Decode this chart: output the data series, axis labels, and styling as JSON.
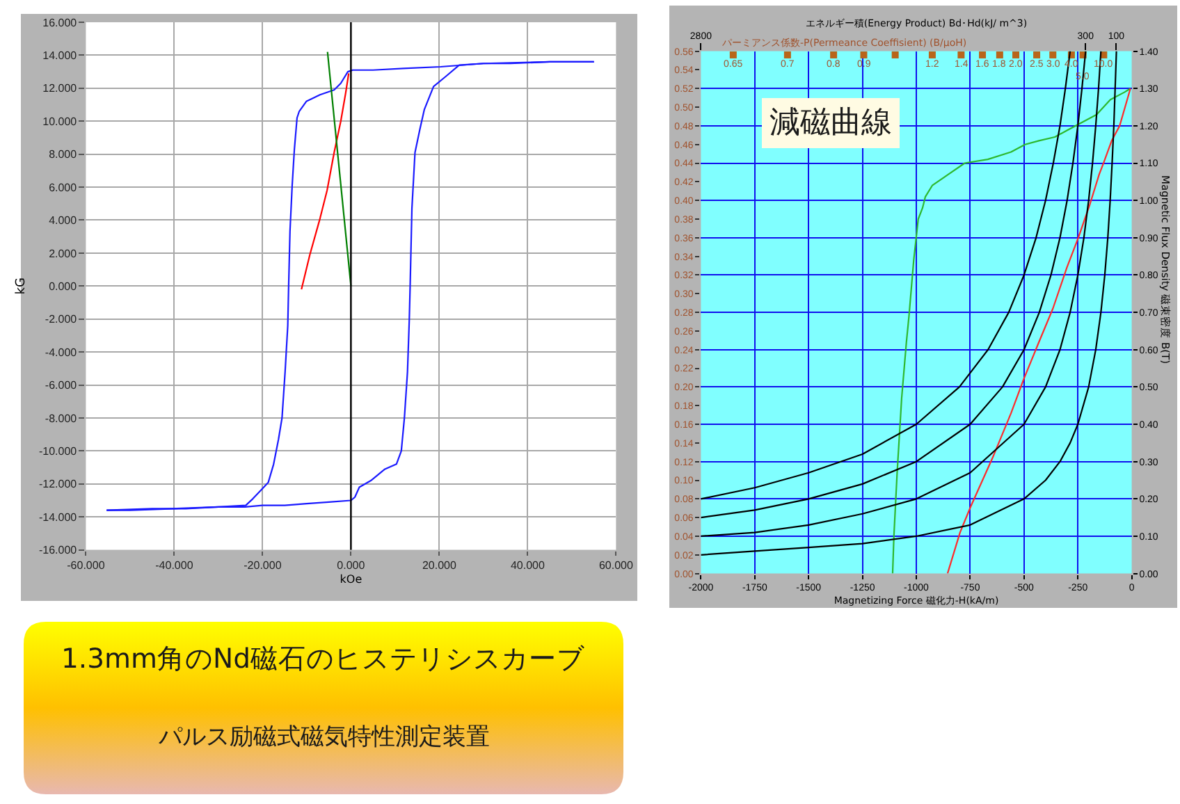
{
  "chart_data": [
    {
      "type": "line",
      "xlabel": "kOe",
      "ylabel": "kG",
      "xlim": [
        -60,
        60
      ],
      "xticks": [
        {
          "value": -60,
          "label": "-60.000"
        },
        {
          "value": -40,
          "label": "-40.000"
        },
        {
          "value": -20,
          "label": "-20.000"
        },
        {
          "value": 0,
          "label": "0.000"
        },
        {
          "value": 20,
          "label": "20.000"
        },
        {
          "value": 40,
          "label": "40.000"
        },
        {
          "value": 60,
          "label": "60.000"
        }
      ],
      "ylim": [
        -16,
        16
      ],
      "yticks": [
        {
          "value": -16,
          "label": "-16.000"
        },
        {
          "value": -14,
          "label": "-14.000"
        },
        {
          "value": -12,
          "label": "-12.000"
        },
        {
          "value": -10,
          "label": "-10.000"
        },
        {
          "value": -8,
          "label": "-8.000"
        },
        {
          "value": -6,
          "label": "-6.000"
        },
        {
          "value": -4,
          "label": "-4.000"
        },
        {
          "value": -2,
          "label": "-2.000"
        },
        {
          "value": 0,
          "label": "0.000"
        },
        {
          "value": 2,
          "label": "2.000"
        },
        {
          "value": 4,
          "label": "4.000"
        },
        {
          "value": 6,
          "label": "6.000"
        },
        {
          "value": 8,
          "label": "8.000"
        },
        {
          "value": 10,
          "label": "10.000"
        },
        {
          "value": 12,
          "label": "12.000"
        },
        {
          "value": 14,
          "label": "14.000"
        },
        {
          "value": 16,
          "label": "16.000"
        }
      ],
      "grid": true,
      "ref_lines": [
        {
          "axis": "x",
          "value": 0,
          "color": "#000000"
        }
      ],
      "series": [
        {
          "color": "#1a1aff",
          "x": [
            -55.3,
            -50,
            -40,
            -30,
            -24,
            -20,
            -15,
            -10,
            -5,
            0,
            0.9,
            1.9,
            4.5,
            7.7,
            10.3,
            11.4,
            12.1,
            12.8,
            13.2,
            13.4,
            13.8,
            14.5,
            15.6,
            16.6,
            18.7,
            21.4,
            24.5,
            30,
            36.1,
            45,
            55
          ],
          "values": [
            -13.6,
            -13.6,
            -13.5,
            -13.4,
            -13.4,
            -13.3,
            -13.3,
            -13.2,
            -13.1,
            -13.0,
            -12.8,
            -12.2,
            -11.8,
            -11.1,
            -10.8,
            -10.0,
            -8.0,
            -5.2,
            -2.1,
            0,
            4.7,
            8.1,
            9.5,
            10.7,
            12.1,
            12.7,
            13.4,
            13.5,
            13.5,
            13.6,
            13.6
          ]
        },
        {
          "color": "#1a1aff",
          "x": [
            55,
            45,
            30,
            20.3,
            11.9,
            5,
            0.4,
            -0.7,
            -2.3,
            -3.8,
            -7,
            -10.1,
            -11.7,
            -12.2,
            -12.8,
            -13.3,
            -13.8,
            -14.1,
            -14.3,
            -14.9,
            -15.6,
            -16.4,
            -17.5,
            -18.7,
            -20.1,
            -22.2,
            -23.8,
            -30,
            -37.4,
            -45,
            -55.3
          ],
          "values": [
            13.6,
            13.6,
            13.5,
            13.3,
            13.2,
            13.1,
            13.1,
            13.0,
            12.3,
            11.9,
            11.6,
            11.2,
            10.6,
            10.2,
            8.3,
            6.1,
            3.3,
            0,
            -2.4,
            -5.2,
            -8.0,
            -9.3,
            -10.8,
            -11.9,
            -12.3,
            -12.9,
            -13.3,
            -13.4,
            -13.5,
            -13.5,
            -13.6
          ]
        },
        {
          "color": "#ff0000",
          "x": [
            -11.2,
            -9.3,
            -7.0,
            -5.4,
            -3.8,
            -2.3,
            -1.2,
            -0.5
          ],
          "values": [
            -0.2,
            1.9,
            4.1,
            5.8,
            8.1,
            10.0,
            11.7,
            12.9
          ]
        },
        {
          "color": "#008000",
          "x": [
            -5.3,
            0
          ],
          "values": [
            14.2,
            0
          ]
        }
      ]
    },
    {
      "type": "line",
      "title": "減磁曲線",
      "xlabel": "Magnetizing Force 磁化力-H(kA/m)",
      "y2label": "Magnetic Flux Density 磁束密度 B(T)",
      "x2label": "エネルギー積(Energy Product) Bd･Hd(kJ/ m^3)",
      "xlim": [
        -2000,
        0
      ],
      "xticks": [
        -2000,
        -1750,
        -1500,
        -1250,
        -1000,
        -750,
        -500,
        -250,
        0
      ],
      "ylim": [
        0,
        0.56
      ],
      "yticks": [
        {
          "value": 0,
          "label": "0.00"
        },
        {
          "value": 0.02,
          "label": "0.02"
        },
        {
          "value": 0.04,
          "label": "0.04"
        },
        {
          "value": 0.06,
          "label": "0.06"
        },
        {
          "value": 0.08,
          "label": "0.08"
        },
        {
          "value": 0.1,
          "label": "0.10"
        },
        {
          "value": 0.12,
          "label": "0.12"
        },
        {
          "value": 0.14,
          "label": "0.14"
        },
        {
          "value": 0.16,
          "label": "0.16"
        },
        {
          "value": 0.18,
          "label": "0.18"
        },
        {
          "value": 0.2,
          "label": "0.20"
        },
        {
          "value": 0.22,
          "label": "0.22"
        },
        {
          "value": 0.24,
          "label": "0.24"
        },
        {
          "value": 0.26,
          "label": "0.26"
        },
        {
          "value": 0.28,
          "label": "0.28"
        },
        {
          "value": 0.3,
          "label": "0.30"
        },
        {
          "value": 0.32,
          "label": "0.32"
        },
        {
          "value": 0.34,
          "label": "0.34"
        },
        {
          "value": 0.36,
          "label": "0.36"
        },
        {
          "value": 0.38,
          "label": "0.38"
        },
        {
          "value": 0.4,
          "label": "0.40"
        },
        {
          "value": 0.42,
          "label": "0.42"
        },
        {
          "value": 0.44,
          "label": "0.44"
        },
        {
          "value": 0.46,
          "label": "0.46"
        },
        {
          "value": 0.48,
          "label": "0.48"
        },
        {
          "value": 0.5,
          "label": "0.50"
        },
        {
          "value": 0.52,
          "label": "0.52"
        },
        {
          "value": 0.54,
          "label": "0.54"
        },
        {
          "value": 0.56,
          "label": "0.56"
        }
      ],
      "y2lim": [
        0,
        1.4
      ],
      "y2ticks": [
        {
          "value": 0,
          "label": "0.00"
        },
        {
          "value": 0.1,
          "label": "0.10"
        },
        {
          "value": 0.2,
          "label": "0.20"
        },
        {
          "value": 0.3,
          "label": "0.30"
        },
        {
          "value": 0.4,
          "label": "0.40"
        },
        {
          "value": 0.5,
          "label": "0.50"
        },
        {
          "value": 0.6,
          "label": "0.60"
        },
        {
          "value": 0.7,
          "label": "0.70"
        },
        {
          "value": 0.8,
          "label": "0.80"
        },
        {
          "value": 0.9,
          "label": "0.90"
        },
        {
          "value": 1.0,
          "label": "1.00"
        },
        {
          "value": 1.1,
          "label": "1.10"
        },
        {
          "value": 1.2,
          "label": "1.20"
        },
        {
          "value": 1.3,
          "label": "1.30"
        },
        {
          "value": 1.4,
          "label": "1.40"
        }
      ],
      "x2lim": [
        2800,
        0
      ],
      "x2ticks": [
        2800,
        300,
        100
      ],
      "grid": true,
      "annotations": [
        "パーミアンス係数-P(Permeance Coeffisient) (B/μoH)",
        {
          "text": "0.65",
          "x": -1850,
          "y": 0.556
        },
        {
          "text": "0.7",
          "x": -1598,
          "y": 0.556
        },
        {
          "text": "0.8",
          "x": -1384,
          "y": 0.556
        },
        {
          "text": "0.9",
          "x": -1244,
          "y": 0.556
        },
        {
          "text": "1.2",
          "x": -926,
          "y": 0.556
        },
        {
          "text": "1.4",
          "x": -792,
          "y": 0.556
        },
        {
          "text": "1.6",
          "x": -693,
          "y": 0.556
        },
        {
          "text": "1.8",
          "x": -613,
          "y": 0.556
        },
        {
          "text": "2.0",
          "x": -538,
          "y": 0.556
        },
        {
          "text": "2.5",
          "x": -441,
          "y": 0.556
        },
        {
          "text": "3.0",
          "x": -366,
          "y": 0.556
        },
        {
          "text": "4.0",
          "x": -280,
          "y": 0.556
        },
        {
          "text": "5.0",
          "x": -226,
          "y": 0.556
        },
        {
          "text": "10.0",
          "x": -130,
          "y": 0.556
        }
      ],
      "series": [
        {
          "color": "#2eb82e",
          "axis": "y2",
          "x": [
            -1110,
            -1104,
            -1089,
            -1068,
            -1046,
            -1034,
            -1012,
            -991,
            -971,
            -958,
            -926,
            -851,
            -775,
            -668,
            -560,
            -495,
            -431,
            -357,
            -293,
            -228,
            -163,
            -99,
            -34,
            -6
          ],
          "values": [
            0,
            0.1,
            0.27,
            0.47,
            0.62,
            0.69,
            0.84,
            0.95,
            0.98,
            1.01,
            1.04,
            1.07,
            1.1,
            1.11,
            1.13,
            1.15,
            1.16,
            1.17,
            1.19,
            1.21,
            1.23,
            1.27,
            1.29,
            1.3
          ]
        },
        {
          "color": "#ff2a2a",
          "axis": "y2",
          "x": [
            -855,
            -797,
            -747,
            -646,
            -560,
            -502,
            -431,
            -366,
            -301,
            -248,
            -194,
            -151,
            -131,
            -93,
            -56,
            -6
          ],
          "values": [
            0,
            0.11,
            0.18,
            0.31,
            0.43,
            0.52,
            0.62,
            0.71,
            0.82,
            0.9,
            0.99,
            1.07,
            1.1,
            1.16,
            1.2,
            1.3
          ]
        },
        {
          "color": "#000000",
          "axis": "y2",
          "x": [
            -2000,
            -1750,
            -1500,
            -1250,
            -1000,
            -750,
            -500,
            -400,
            -333,
            -286,
            -250,
            -200,
            -167,
            -143,
            -125,
            -111,
            -100,
            -91,
            -83,
            -77,
            -71
          ],
          "values": [
            0.05,
            0.06,
            0.07,
            0.08,
            0.1,
            0.13,
            0.2,
            0.25,
            0.3,
            0.35,
            0.4,
            0.5,
            0.6,
            0.7,
            0.8,
            0.9,
            1.0,
            1.1,
            1.2,
            1.3,
            1.4
          ]
        },
        {
          "color": "#000000",
          "axis": "y2",
          "x": [
            -2000,
            -1750,
            -1500,
            -1250,
            -1000,
            -750,
            -500,
            -400,
            -333,
            -286,
            -250,
            -222,
            -200,
            -182,
            -167,
            -154,
            -143
          ],
          "values": [
            0.1,
            0.11,
            0.13,
            0.16,
            0.2,
            0.27,
            0.4,
            0.5,
            0.6,
            0.7,
            0.8,
            0.9,
            1.0,
            1.1,
            1.2,
            1.3,
            1.4
          ]
        },
        {
          "color": "#000000",
          "axis": "y2",
          "x": [
            -2000,
            -1750,
            -1500,
            -1250,
            -1000,
            -750,
            -600,
            -500,
            -429,
            -375,
            -333,
            -300,
            -273,
            -250,
            -231,
            -214
          ],
          "values": [
            0.15,
            0.17,
            0.2,
            0.24,
            0.3,
            0.4,
            0.5,
            0.6,
            0.7,
            0.8,
            0.9,
            1.0,
            1.1,
            1.2,
            1.3,
            1.4
          ]
        },
        {
          "color": "#000000",
          "axis": "y2",
          "x": [
            -2000,
            -1750,
            -1500,
            -1250,
            -1000,
            -800,
            -667,
            -571,
            -500,
            -444,
            -400,
            -364,
            -333,
            -308,
            -286
          ],
          "values": [
            0.2,
            0.23,
            0.27,
            0.32,
            0.4,
            0.5,
            0.6,
            0.7,
            0.8,
            0.9,
            1.0,
            1.1,
            1.2,
            1.3,
            1.4
          ]
        },
        {
          "type": "scatter",
          "marker": "square",
          "color": "#b8651a",
          "x": [
            -1850,
            -1598,
            -1384,
            -1244,
            -1098,
            -926,
            -792,
            -693,
            -613,
            -538,
            -441,
            -366,
            -280,
            -226,
            -130
          ],
          "values": [
            0.556,
            0.556,
            0.556,
            0.556,
            0.556,
            0.556,
            0.556,
            0.556,
            0.556,
            0.556,
            0.556,
            0.556,
            0.556,
            0.556,
            0.556
          ]
        }
      ]
    },
    {
      "type": "other",
      "title": "1.3mm角のNd磁石のヒステリシスカーブ",
      "subtitle": "パルス励磁式磁気特性測定装置"
    }
  ]
}
